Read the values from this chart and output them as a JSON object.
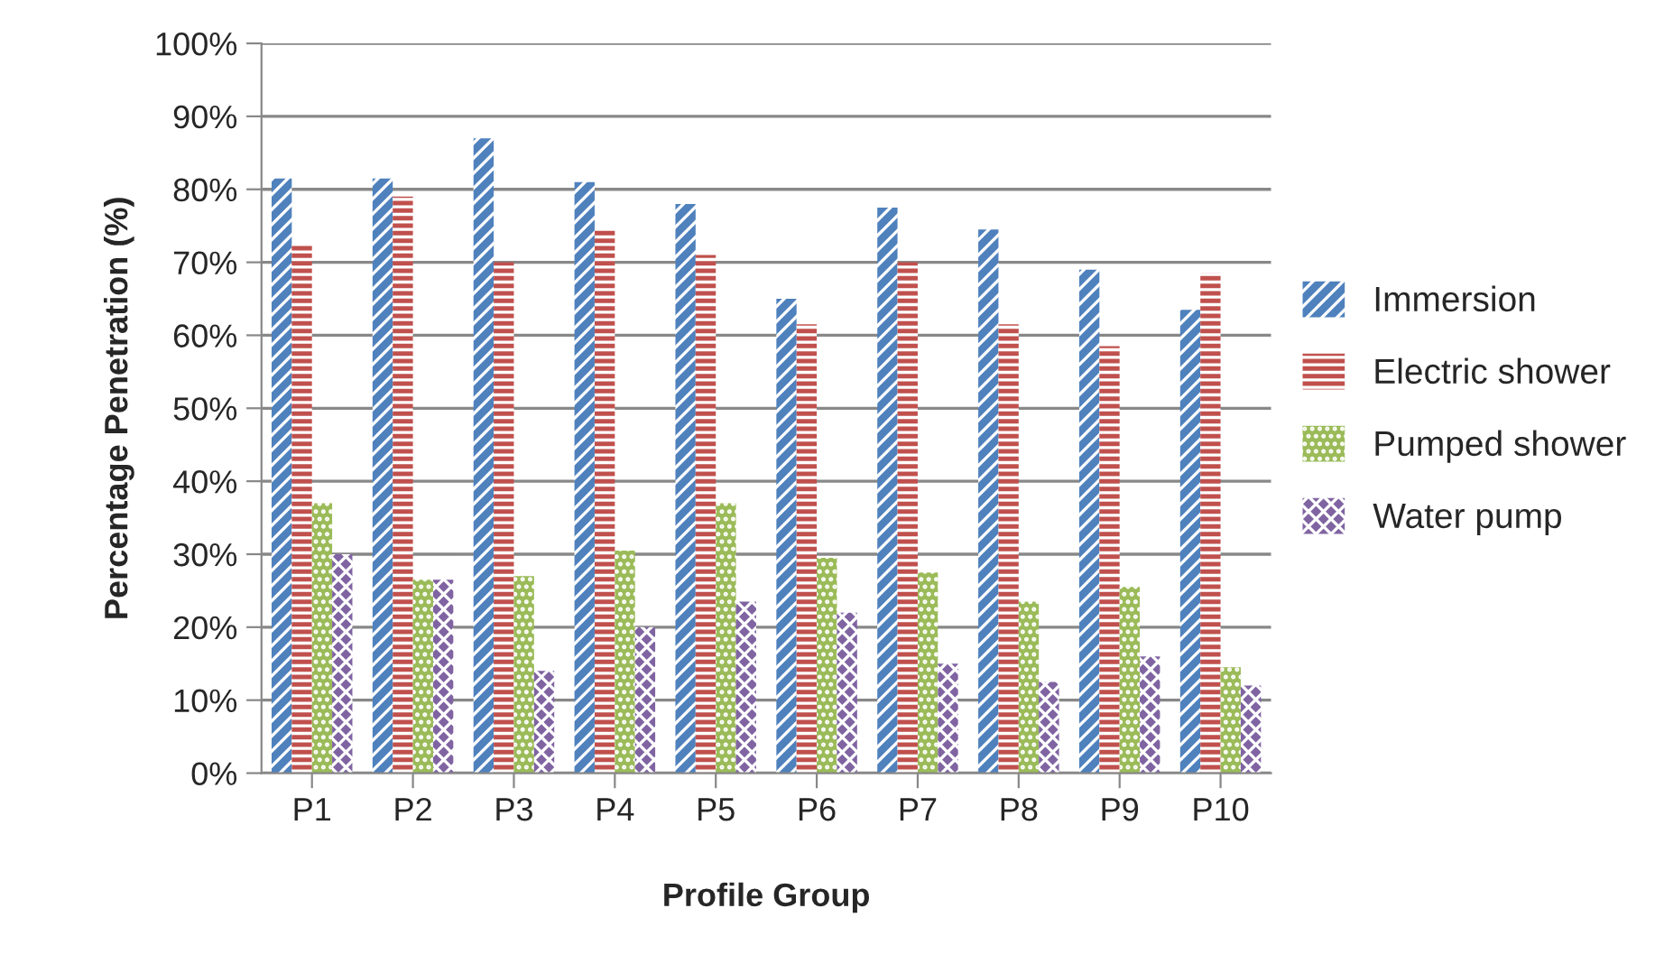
{
  "chart_data": {
    "type": "bar",
    "xlabel": "Profile Group",
    "ylabel": "Percentage Penetration (%)",
    "categories": [
      "P1",
      "P2",
      "P3",
      "P4",
      "P5",
      "P6",
      "P7",
      "P8",
      "P9",
      "P10"
    ],
    "series": [
      {
        "name": "Immersion",
        "color": "#4f81bd",
        "values": [
          81.5,
          81.5,
          87,
          81,
          78,
          65,
          77.5,
          74.5,
          69,
          63.5
        ]
      },
      {
        "name": "Electric shower",
        "color": "#c0504d",
        "values": [
          72.5,
          79,
          70,
          74.5,
          71,
          61.5,
          70,
          61.5,
          58.5,
          68.5
        ]
      },
      {
        "name": "Pumped shower",
        "color": "#9bbb59",
        "values": [
          37,
          26.5,
          27,
          30.5,
          37,
          29.5,
          27.5,
          23.5,
          25.5,
          14.5
        ]
      },
      {
        "name": "Water pump",
        "color": "#8064a2",
        "values": [
          30,
          26.5,
          14,
          20,
          23.5,
          22,
          15,
          12.5,
          16,
          12
        ]
      }
    ],
    "ylim": [
      0,
      100
    ],
    "yticks": [
      {
        "value": 0,
        "label": "0%"
      },
      {
        "value": 10,
        "label": "10%"
      },
      {
        "value": 20,
        "label": "20%"
      },
      {
        "value": 30,
        "label": "30%"
      },
      {
        "value": 40,
        "label": "40%"
      },
      {
        "value": 50,
        "label": "50%"
      },
      {
        "value": 60,
        "label": "60%"
      },
      {
        "value": 70,
        "label": "70%"
      },
      {
        "value": 80,
        "label": "80%"
      },
      {
        "value": 90,
        "label": "90%"
      },
      {
        "value": 100,
        "label": "100%"
      }
    ],
    "grid": "y",
    "legend": "right"
  }
}
